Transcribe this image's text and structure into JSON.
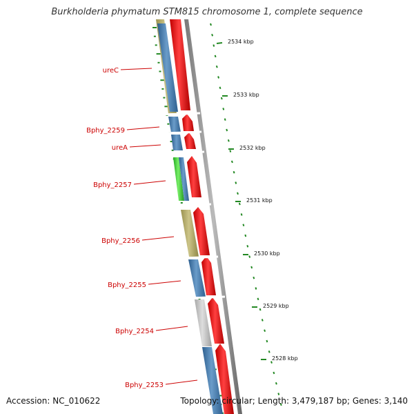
{
  "title": "Burkholderia phymatum STM815 chromosome 1, complete sequence",
  "footer": {
    "accession": "Accession: NC_010622",
    "topology": "Topology: circular; Length: 3,479,187 bp; Genes: 3,140"
  },
  "colors": {
    "reverse_strand_blue": "#4a7fb3",
    "forward_strand_red": "#ee1111",
    "khaki": "#b8b070",
    "green": "#44cc33",
    "grey": "#c0c0c0",
    "tick_green": "#228822",
    "label_red": "#cc0000"
  },
  "ruler": {
    "unit": "kbp",
    "labels": [
      "2534 kbp",
      "2533 kbp",
      "2532 kbp",
      "2531 kbp",
      "2530 kbp",
      "2529 kbp",
      "2528 kbp"
    ]
  },
  "gene_labels": [
    {
      "name": "ureC"
    },
    {
      "name": "Bphy_2259"
    },
    {
      "name": "ureA"
    },
    {
      "name": "Bphy_2257"
    },
    {
      "name": "Bphy_2256"
    },
    {
      "name": "Bphy_2255"
    },
    {
      "name": "Bphy_2254"
    },
    {
      "name": "Bphy_2253"
    }
  ]
}
